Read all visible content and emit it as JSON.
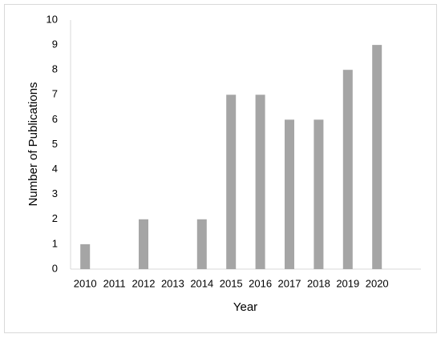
{
  "chart_data": {
    "type": "bar",
    "x_label": "Year",
    "y_label": "Number of Publications",
    "categories": [
      "2010",
      "2011",
      "2012",
      "2013",
      "2014",
      "2015",
      "2016",
      "2017",
      "2018",
      "2019",
      "2020"
    ],
    "values": [
      1,
      0,
      2,
      0,
      2,
      7,
      7,
      6,
      6,
      8,
      9
    ],
    "color": "#a5a5a5",
    "ylim": [
      0,
      10
    ],
    "yticks": [
      0,
      1,
      2,
      3,
      4,
      5,
      6,
      7,
      8,
      9,
      10
    ],
    "grid": false
  }
}
